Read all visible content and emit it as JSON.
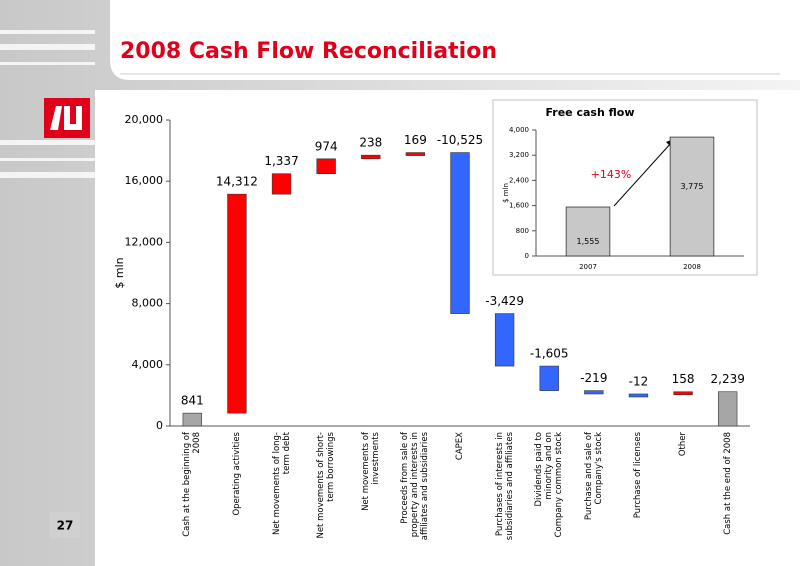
{
  "slide_title": "2008 Cash Flow Reconciliation",
  "page_number": "27",
  "chart_data": [
    {
      "type": "waterfall",
      "y_label": "$ mln",
      "categories": [
        "Cash at the beginning of 2008",
        "Operating activities",
        "Net movements of long-term debt",
        "Net movements of short-term borrowings",
        "Net movements of investments",
        "Proceeds from sale of property and interests in affiliates and subsidiaries",
        "CAPEX",
        "Purchases of interests in subsidiaries and affiliates",
        "Dividends paid to minority and on Company common stock",
        "Purchase and sale of Company's stock",
        "Purchase of licenses",
        "Other",
        "Cash at the end of 2008"
      ],
      "values": [
        841,
        14312,
        1337,
        974,
        238,
        169,
        -10525,
        -3429,
        -1605,
        -219,
        -12,
        158,
        2239
      ],
      "value_labels": [
        "841",
        "14,312",
        "1,337",
        "974",
        "238",
        "169",
        "-10,525",
        "-3,429",
        "-1,605",
        "-219",
        "-12",
        "158",
        "2,239"
      ],
      "total_color": "#a6a6a6",
      "increase_color": "#ff0000",
      "decrease_color": "#3366ff",
      "ylim": [
        0,
        20000
      ],
      "yticks": [
        0,
        {
          "value": 4000,
          "label": "4,000"
        },
        {
          "value": 8000,
          "label": "8,000"
        },
        {
          "value": 12000,
          "label": "12,000"
        },
        {
          "value": 16000,
          "label": "16,000"
        },
        {
          "value": 20000,
          "label": "20,000"
        }
      ]
    },
    {
      "type": "bar",
      "title": "Free cash flow",
      "y_label": "$ mln",
      "categories": [
        "2007",
        "2008"
      ],
      "values": [
        1555,
        3775
      ],
      "value_labels": [
        "1,555",
        "3,775"
      ],
      "color": "#c8c8c8",
      "annotation": "+143%",
      "ylim": [
        0,
        4000
      ],
      "yticks": [
        0,
        800,
        {
          "value": 1600,
          "label": "1,600"
        },
        {
          "value": 2400,
          "label": "2,400"
        },
        {
          "value": 3200,
          "label": "3,200"
        },
        {
          "value": 4000,
          "label": "4,000"
        }
      ]
    }
  ]
}
